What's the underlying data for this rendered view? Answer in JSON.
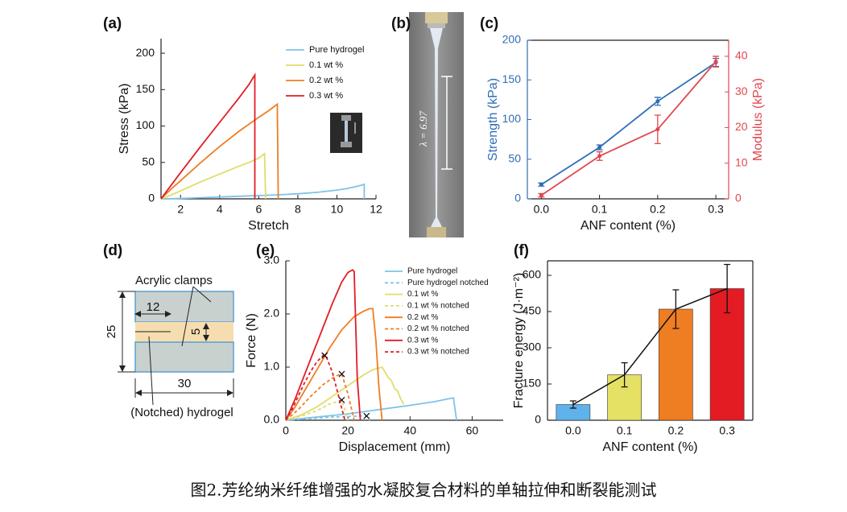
{
  "chart_data": [
    {
      "type": "line",
      "panel": "(a)",
      "xlabel": "Stretch",
      "ylabel": "Stress (kPa)",
      "xlim": [
        1,
        12
      ],
      "xticks": [
        2,
        4,
        6,
        8,
        10,
        12
      ],
      "ylim": [
        0,
        220
      ],
      "yticks": [
        0,
        50,
        100,
        150,
        200
      ],
      "legend": "upper right",
      "series": [
        {
          "name": "Pure hydrogel",
          "color": "#7ec3ea",
          "x": [
            1,
            2,
            3,
            4,
            5,
            6,
            7,
            8,
            9,
            10,
            10.5,
            11,
            11.3,
            11.4,
            11.4
          ],
          "values": [
            0,
            0.5,
            1.5,
            2.5,
            3.5,
            4.5,
            5.5,
            7,
            9,
            12,
            14,
            17,
            19,
            20,
            0
          ]
        },
        {
          "name": "0.1 wt %",
          "color": "#e2dc6b",
          "x": [
            1,
            1.5,
            2,
            3,
            4,
            5,
            5.5,
            6,
            6.2,
            6.3,
            6.35
          ],
          "values": [
            0,
            5,
            11,
            23,
            34,
            45,
            50,
            56,
            60,
            62,
            0
          ]
        },
        {
          "name": "0.2 wt %",
          "color": "#ef7d22",
          "x": [
            1,
            1.5,
            2,
            3,
            4,
            5,
            6,
            6.5,
            6.8,
            6.95,
            7.0
          ],
          "values": [
            0,
            13,
            25,
            49,
            72,
            93,
            112,
            121,
            127,
            130,
            0
          ]
        },
        {
          "name": "0.3 wt %",
          "color": "#e31c24",
          "x": [
            1,
            1.5,
            2,
            3,
            4,
            5,
            5.5,
            5.8,
            5.8
          ],
          "values": [
            0,
            18,
            36,
            71,
            105,
            139,
            157,
            170,
            0
          ]
        }
      ]
    },
    {
      "type": "line",
      "panel": "(c)",
      "xlabel": "ANF content (%)",
      "ylabel": "Strength (kPa)",
      "y2label": "Modulus (kPa)",
      "x": [
        0,
        0.1,
        0.2,
        0.3
      ],
      "xlim": [
        -0.024,
        0.322
      ],
      "xticks": [
        {
          "value": 0,
          "label": "0.0"
        },
        0.1,
        0.2,
        0.3
      ],
      "ylim": [
        0,
        200
      ],
      "yticks": [
        0,
        50,
        100,
        150,
        200
      ],
      "y2lim": [
        0,
        44.5
      ],
      "y2ticks": [
        0,
        10,
        20,
        30,
        40
      ],
      "series": [
        {
          "color": "#2f6db5",
          "values": [
            18,
            65,
            123,
            172
          ],
          "errors": [
            2,
            3,
            5,
            5
          ]
        },
        {
          "color": "#e0474f",
          "axis": "y2",
          "values": [
            1,
            12,
            19.5,
            38.5
          ],
          "errors": [
            0.5,
            1.2,
            4,
            1.5
          ]
        }
      ]
    },
    {
      "type": "line",
      "panel": "(e)",
      "xlabel": "Displacement (mm)",
      "ylabel": "Force (N)",
      "xlim": [
        0,
        70
      ],
      "xticks": [
        0,
        20,
        40,
        60
      ],
      "ylim": [
        0,
        3
      ],
      "yticks": [
        {
          "value": 0,
          "label": "0.0"
        },
        {
          "value": 1,
          "label": "1.0"
        },
        {
          "value": 2,
          "label": "2.0"
        },
        {
          "value": 3,
          "label": "3.0"
        }
      ],
      "legend": "upper right",
      "series": [
        {
          "name": "Pure hydrogel",
          "color": "#7ec3ea",
          "x": [
            0,
            5,
            10,
            20,
            30,
            40,
            48,
            52,
            54,
            54.5,
            55
          ],
          "values": [
            0,
            0.03,
            0.06,
            0.12,
            0.2,
            0.28,
            0.35,
            0.4,
            0.42,
            0.2,
            0
          ]
        },
        {
          "name": "Pure hydrogel notched",
          "color": "#7ec3ea",
          "dash": true,
          "x": [
            0,
            5,
            10,
            15,
            20,
            24,
            26,
            27
          ],
          "values": [
            0,
            0.02,
            0.04,
            0.06,
            0.07,
            0.08,
            0.08,
            0
          ],
          "break": {
            "x": 26,
            "y": 0.08
          }
        },
        {
          "name": "0.1 wt %",
          "color": "#e2dc6b",
          "x": [
            0,
            5,
            10,
            15,
            20,
            25,
            28,
            31,
            32,
            33,
            34,
            35,
            36,
            37,
            38
          ],
          "values": [
            0,
            0.1,
            0.25,
            0.45,
            0.65,
            0.85,
            0.95,
            1.0,
            0.9,
            0.8,
            0.75,
            0.6,
            0.55,
            0.4,
            0.3
          ]
        },
        {
          "name": "0.1 wt % notched",
          "color": "#e2dc6b",
          "dash": true,
          "x": [
            0,
            5,
            10,
            14,
            18,
            19,
            20
          ],
          "values": [
            0,
            0.08,
            0.18,
            0.3,
            0.38,
            0.2,
            0
          ],
          "break": {
            "x": 18,
            "y": 0.38
          }
        },
        {
          "name": "0.2 wt %",
          "color": "#ef7d22",
          "x": [
            0,
            3,
            6,
            10,
            14,
            18,
            22,
            25,
            27,
            28,
            29,
            30,
            31
          ],
          "values": [
            0,
            0.25,
            0.55,
            0.95,
            1.35,
            1.7,
            1.95,
            2.05,
            2.1,
            2.1,
            1.5,
            0.6,
            0
          ]
        },
        {
          "name": "0.2 wt % notched",
          "color": "#ef7d22",
          "dash": true,
          "x": [
            0,
            4,
            8,
            12,
            16,
            18,
            20,
            22
          ],
          "values": [
            0,
            0.2,
            0.45,
            0.67,
            0.83,
            0.87,
            0.5,
            0
          ],
          "break": {
            "x": 18,
            "y": 0.87
          }
        },
        {
          "name": "0.3 wt %",
          "color": "#e31c24",
          "x": [
            0,
            3,
            6,
            9,
            12,
            15,
            18,
            20,
            21.5,
            22,
            22.5,
            23,
            24
          ],
          "values": [
            0,
            0.4,
            0.85,
            1.3,
            1.75,
            2.2,
            2.6,
            2.78,
            2.83,
            2.8,
            1.8,
            0.8,
            0
          ]
        },
        {
          "name": "0.3 wt % notched",
          "color": "#e31c24",
          "dash": true,
          "x": [
            0,
            2,
            4,
            6,
            8,
            10,
            12,
            13,
            15,
            17,
            19
          ],
          "values": [
            0,
            0.2,
            0.45,
            0.7,
            0.92,
            1.1,
            1.22,
            1.2,
            0.9,
            0.45,
            0
          ],
          "break": {
            "x": 12.5,
            "y": 1.22
          }
        }
      ]
    },
    {
      "type": "bar",
      "panel": "(f)",
      "xlabel": "ANF content (%)",
      "ylabel": "Fracture energy (J·m⁻²)",
      "categories": [
        "0.0",
        "0.1",
        "0.2",
        "0.3"
      ],
      "ylim": [
        0,
        660
      ],
      "yticks": [
        0,
        150,
        300,
        450,
        600
      ],
      "values": [
        65,
        188,
        460,
        545
      ],
      "errors": [
        15,
        50,
        80,
        100
      ],
      "colors": [
        "#5fb2ea",
        "#e5e165",
        "#ef7d22",
        "#e31c24"
      ],
      "connect": true
    }
  ],
  "photo": {
    "panel": "(b)",
    "annotation": "λ = 6.97"
  },
  "diagram": {
    "panel": "(d)",
    "clamps": "Acrylic clamps",
    "hydrogel": "(Notched) hydrogel",
    "notch": "12",
    "gap": "5",
    "height": "25",
    "width": "30"
  },
  "caption": "图2.芳纶纳米纤维增强的水凝胶复合材料的单轴拉伸和断裂能测试"
}
